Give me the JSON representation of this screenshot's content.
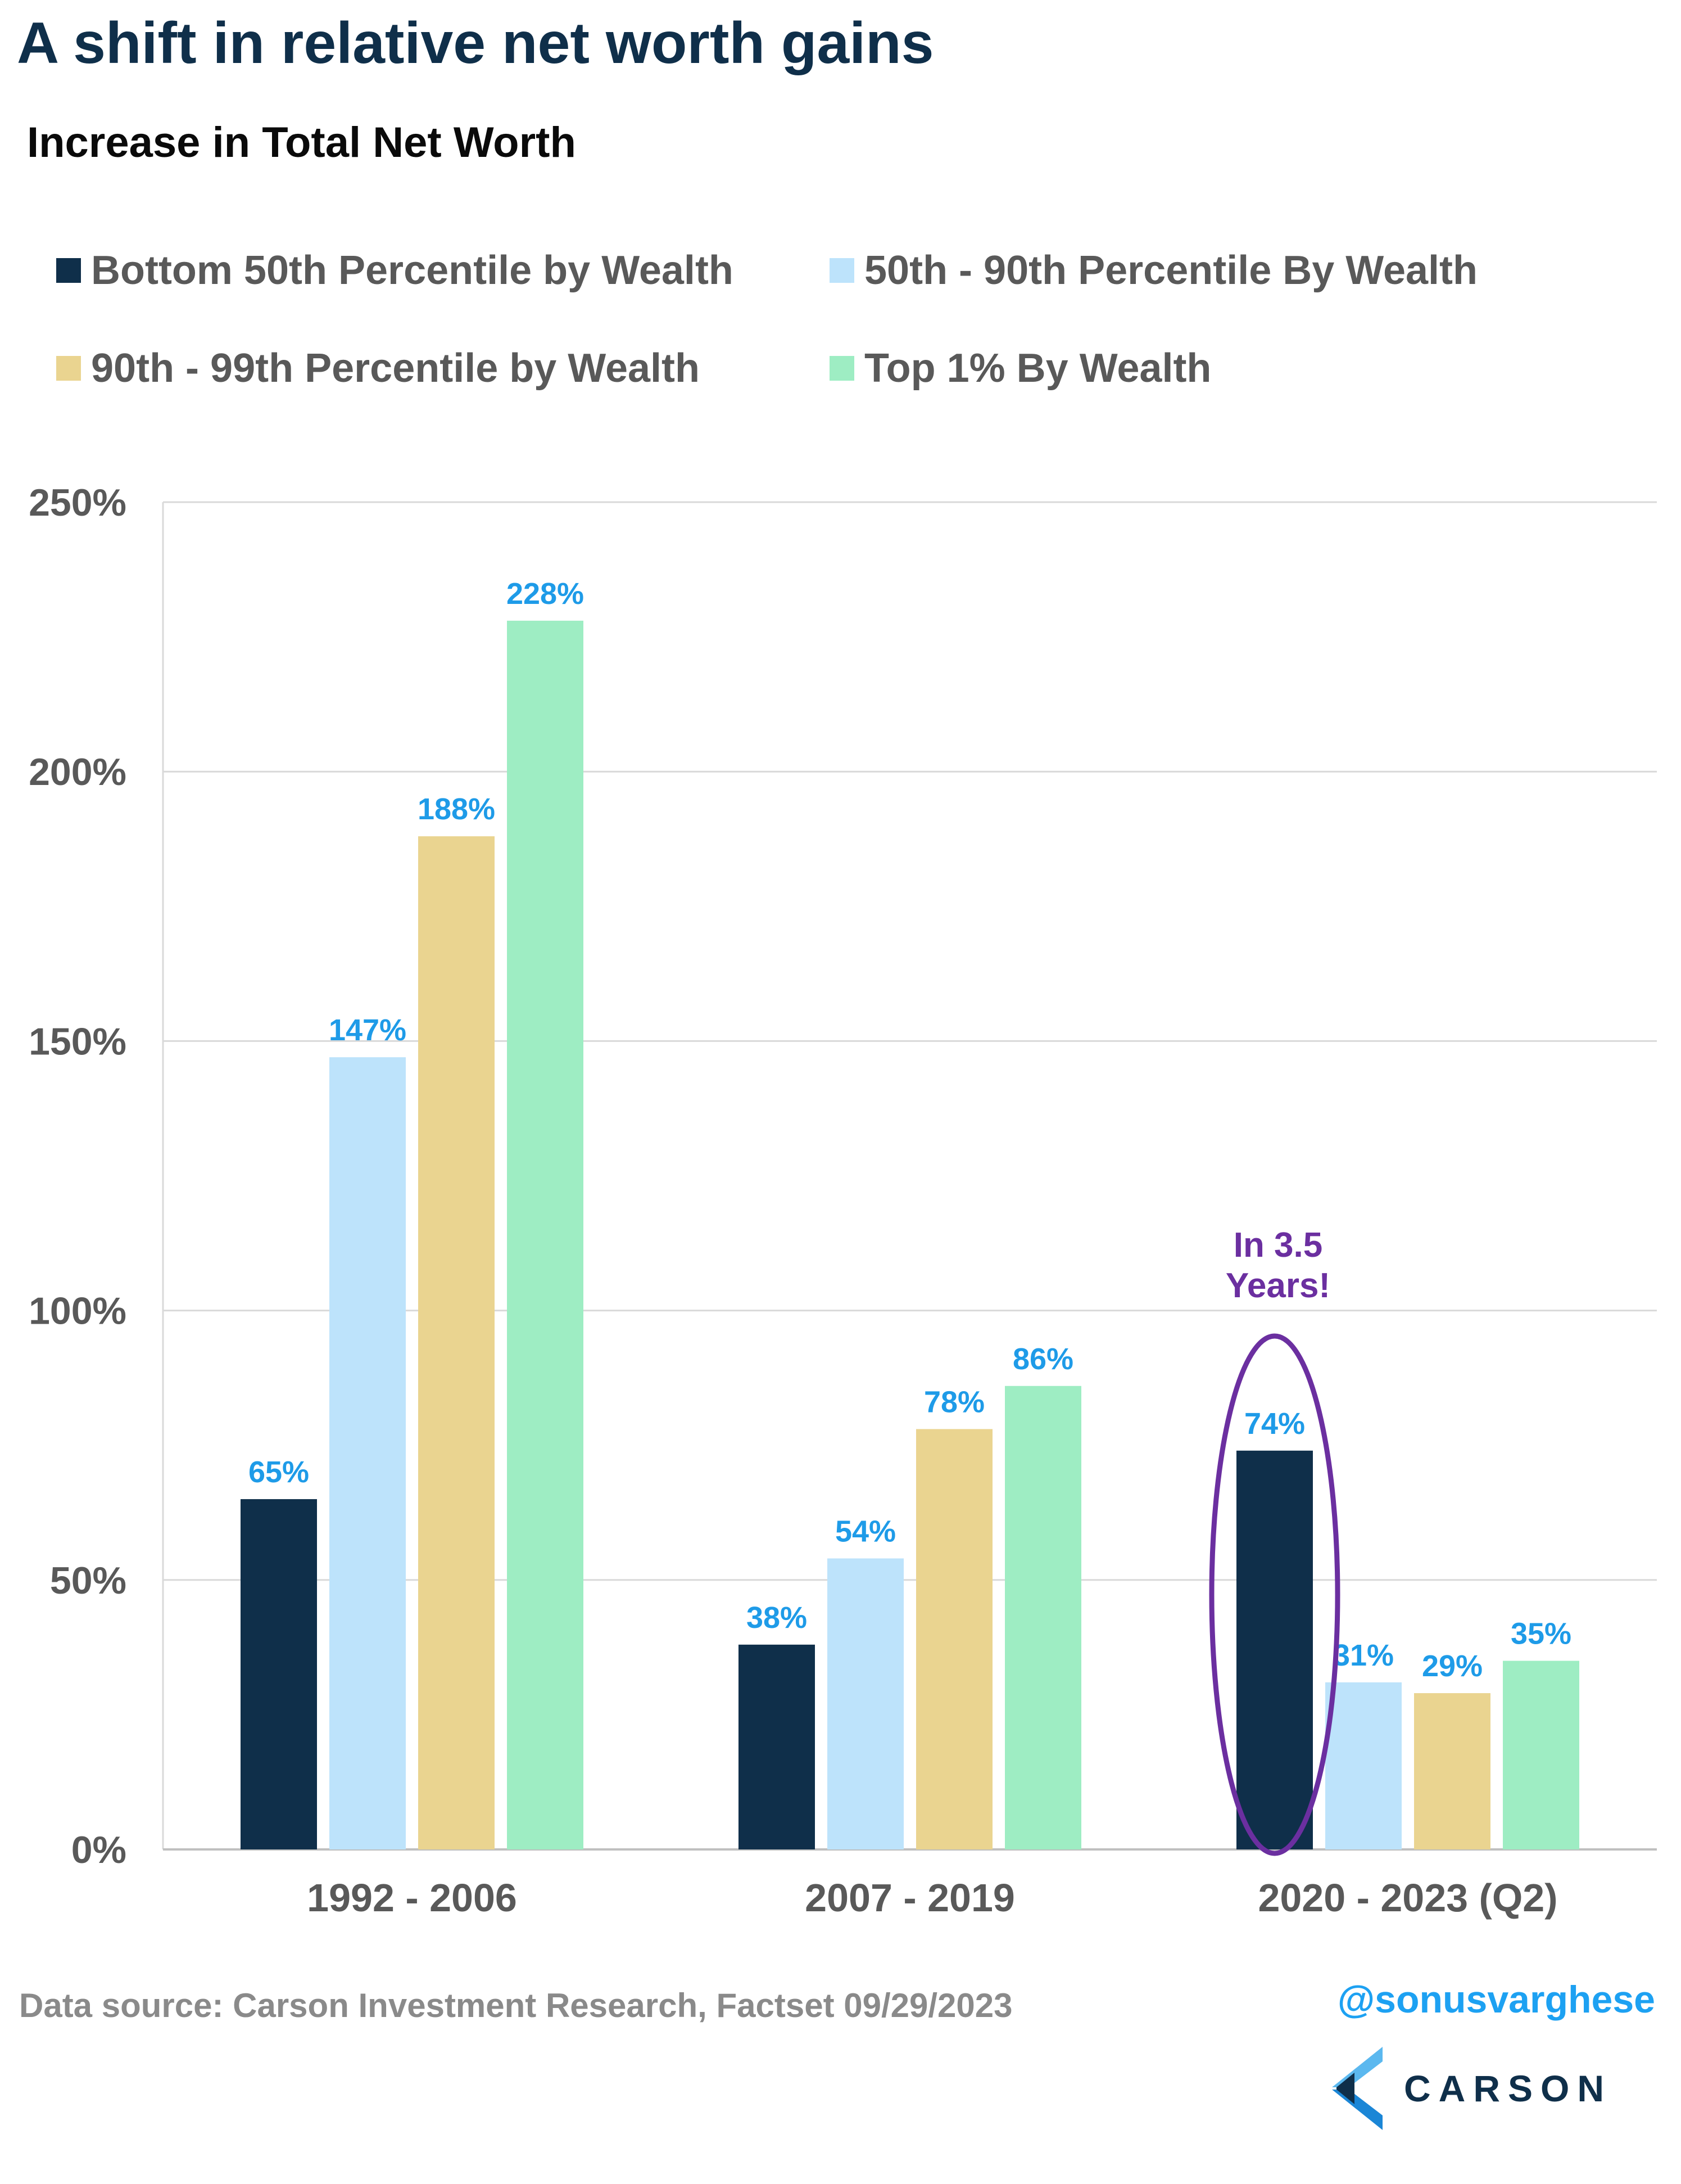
{
  "title": "A shift in relative net worth gains",
  "subtitle": "Increase in Total Net Worth",
  "legend": [
    {
      "label": "Bottom 50th Percentile by Wealth",
      "color": "#0f2f4a"
    },
    {
      "label": "50th - 90th Percentile By Wealth",
      "color": "#bde3fb"
    },
    {
      "label": "90th - 99th Percentile by Wealth",
      "color": "#ead490"
    },
    {
      "label": "Top 1% By Wealth",
      "color": "#9eedc3"
    }
  ],
  "chart_data": {
    "type": "bar",
    "categories": [
      "1992 - 2006",
      "2007 - 2019",
      "2020 - 2023 (Q2)"
    ],
    "series": [
      {
        "name": "Bottom 50th Percentile by Wealth",
        "values": [
          65,
          38,
          74
        ],
        "labels": [
          "65%",
          "38%",
          "74%"
        ]
      },
      {
        "name": "50th - 90th Percentile By Wealth",
        "values": [
          147,
          54,
          31
        ],
        "labels": [
          "147%",
          "54%",
          "31%"
        ]
      },
      {
        "name": "90th - 99th Percentile by Wealth",
        "values": [
          188,
          78,
          29
        ],
        "labels": [
          "188%",
          "78%",
          "29%"
        ]
      },
      {
        "name": "Top 1% By Wealth",
        "values": [
          228,
          86,
          35
        ],
        "labels": [
          "228%",
          "86%",
          "35%"
        ]
      }
    ],
    "ylim": [
      0,
      250
    ],
    "yticks": [
      0,
      50,
      100,
      150,
      200,
      250
    ],
    "ytick_labels": [
      "0%",
      "50%",
      "100%",
      "150%",
      "200%",
      "250%"
    ],
    "grid": true,
    "legend_position": "top-left",
    "data_label_color": "#1e9be8",
    "annotation": {
      "lines": [
        "In 3.5",
        "Years!"
      ],
      "category": "2020 - 2023 (Q2)",
      "color": "#6b2fa0"
    }
  },
  "footer": {
    "source": "Data source: Carson Investment Research, Factset   09/29/2023",
    "handle": "@sonusvarghese",
    "brand": "CARSON"
  }
}
